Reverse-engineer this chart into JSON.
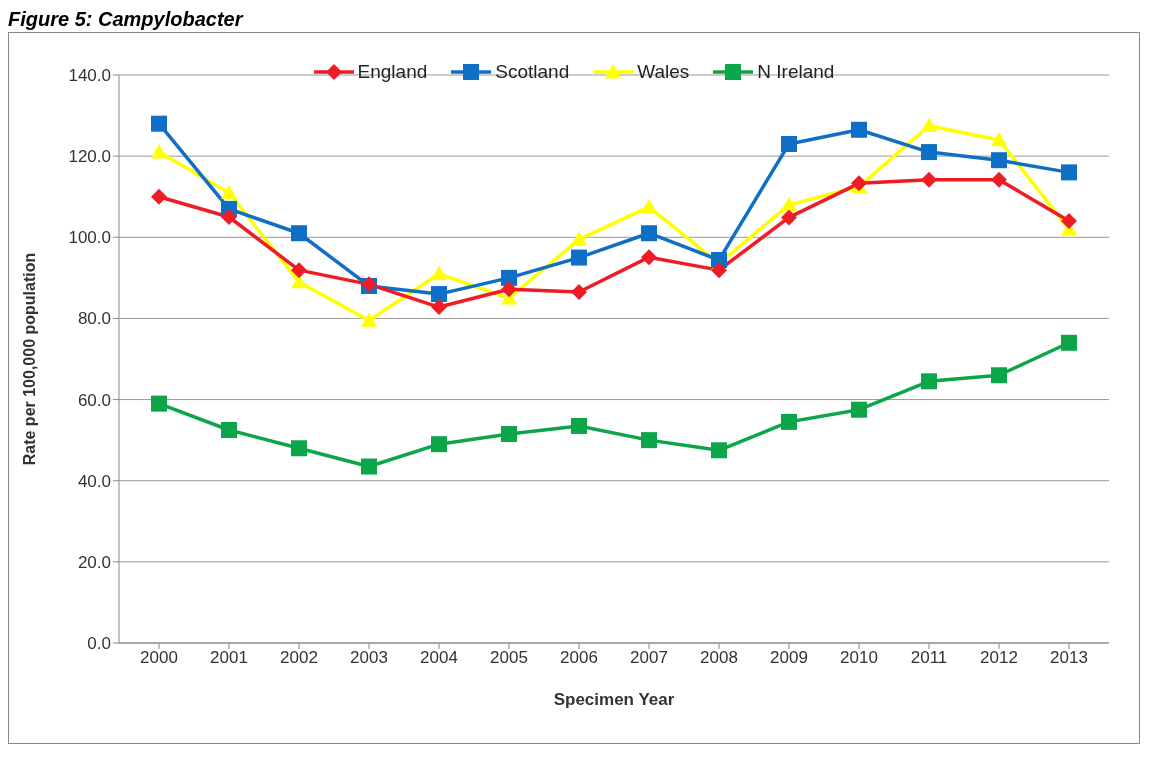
{
  "chart_data": {
    "type": "line",
    "title": "Figure 5: Campylobacter",
    "xlabel": "Specimen Year",
    "ylabel": "Rate per 100,000 population",
    "categories": [
      "2000",
      "2001",
      "2002",
      "2003",
      "2004",
      "2005",
      "2006",
      "2007",
      "2008",
      "2009",
      "2010",
      "2011",
      "2012",
      "2013"
    ],
    "series": [
      {
        "name": "England",
        "color": "#ee1c25",
        "marker": "diamond",
        "values": [
          110,
          105,
          91.9,
          88.4,
          82.8,
          87.2,
          86.5,
          95.1,
          91.9,
          104.9,
          113.3,
          114.2,
          114.2,
          104
        ]
      },
      {
        "name": "Scotland",
        "color": "#0f6fc6",
        "marker": "square",
        "values": [
          128,
          107,
          101,
          88,
          86,
          90,
          95,
          101,
          94.4,
          123,
          126.5,
          121,
          119,
          116
        ]
      },
      {
        "name": "Wales",
        "color": "#ffff00",
        "marker": "triangle",
        "values": [
          121,
          111,
          89,
          79.5,
          91,
          85,
          99.5,
          107.5,
          93.5,
          108,
          112.5,
          127.5,
          124,
          102
        ]
      },
      {
        "name": "N Ireland",
        "color": "#0ca54a",
        "marker": "square",
        "values": [
          59,
          52.5,
          48,
          43.5,
          49,
          51.5,
          53.5,
          50,
          47.5,
          54.5,
          57.5,
          64.5,
          66,
          74
        ]
      }
    ],
    "ylim": [
      0,
      140
    ],
    "yticks": [
      {
        "value": 0,
        "label": "0.0"
      },
      {
        "value": 20,
        "label": "20.0"
      },
      {
        "value": 40,
        "label": "40.0"
      },
      {
        "value": 60,
        "label": "60.0"
      },
      {
        "value": 80,
        "label": "80.0"
      },
      {
        "value": 100,
        "label": "100.0"
      },
      {
        "value": 120,
        "label": "120.0"
      },
      {
        "value": 140,
        "label": "140.0"
      }
    ],
    "grid": "y",
    "legend": "top",
    "line_style": "solid"
  }
}
